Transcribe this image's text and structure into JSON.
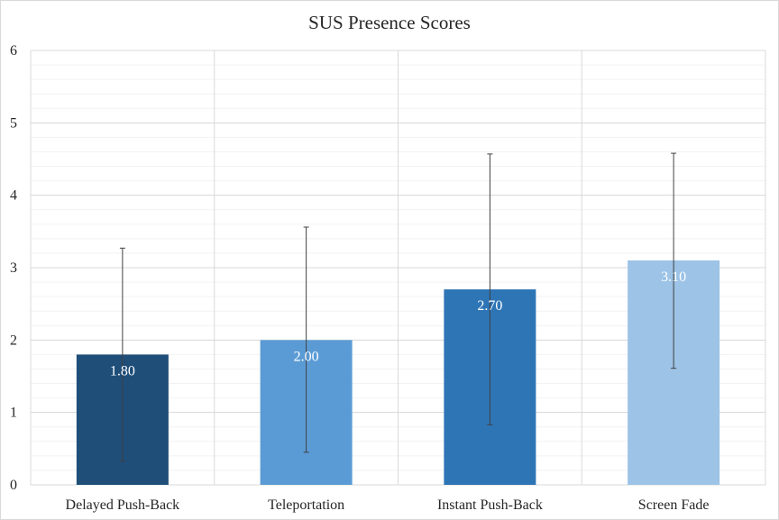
{
  "chart_data": {
    "type": "bar",
    "title": "SUS Presence Scores",
    "xlabel": "",
    "ylabel": "",
    "categories": [
      "Delayed Push-Back",
      "Teleportation",
      "Instant Push-Back",
      "Screen Fade"
    ],
    "values": [
      1.8,
      2.0,
      2.7,
      3.1
    ],
    "value_labels": [
      "1.80",
      "2.00",
      "2.70",
      "3.10"
    ],
    "error_low": [
      0.33,
      0.45,
      0.83,
      1.61
    ],
    "error_high": [
      3.27,
      3.56,
      4.57,
      4.58
    ],
    "bar_colors": [
      "#1f4e79",
      "#5b9bd5",
      "#2e75b6",
      "#9dc3e6"
    ],
    "ylim": [
      0,
      6
    ],
    "yticks": [
      0,
      1,
      2,
      3,
      4,
      5,
      6
    ],
    "ytick_labels": [
      "0",
      "1",
      "2",
      "3",
      "4",
      "5",
      "6"
    ],
    "grid": true,
    "legend": "none"
  }
}
